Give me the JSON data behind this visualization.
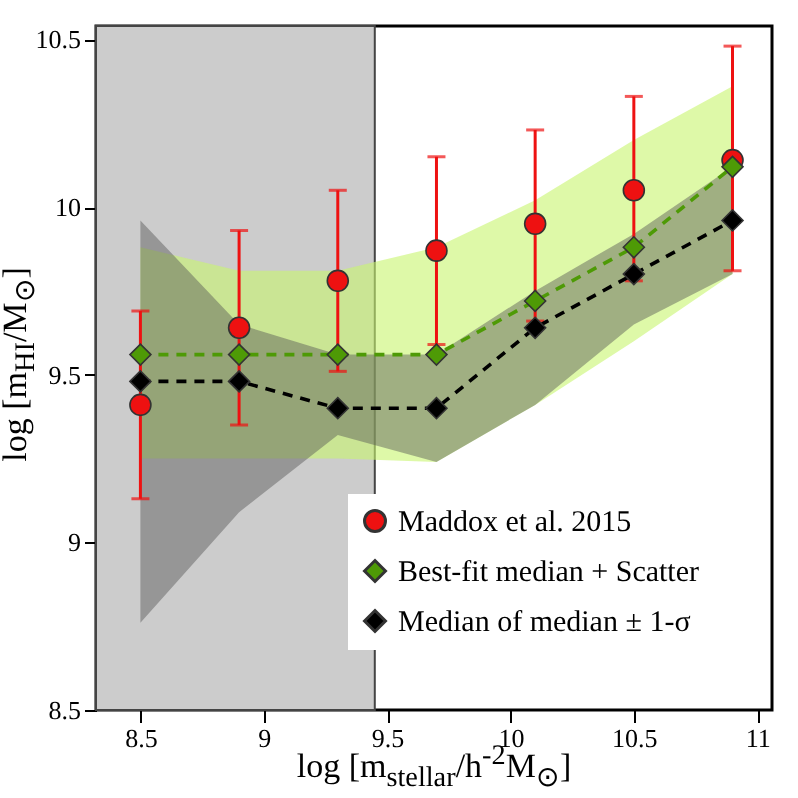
{
  "chart_data": {
    "type": "line",
    "xlabel": "log [m$_{stellar}$/h$^{-2}$M$_{⊙}$]",
    "ylabel": "log [m$_{HI}$/M$_{⊙}$]",
    "x": [
      8.5,
      8.9,
      9.3,
      9.7,
      10.1,
      10.5,
      10.9
    ],
    "series": [
      {
        "name": "Maddox et al. 2015",
        "type": "scatter",
        "marker": "circle",
        "color": "#ee1111",
        "values": [
          9.41,
          9.64,
          9.78,
          9.87,
          9.95,
          10.05,
          10.14
        ],
        "errors": [
          [
            9.13,
            9.69
          ],
          [
            9.35,
            9.93
          ],
          [
            9.51,
            10.05
          ],
          [
            9.59,
            10.15
          ],
          [
            9.66,
            10.23
          ],
          [
            9.78,
            10.33
          ],
          [
            9.81,
            10.48
          ]
        ]
      },
      {
        "name": "Best-fit median + Scatter",
        "marker": "diamond",
        "line_style": "dashed",
        "color": "#4e9a06",
        "values": [
          9.56,
          9.56,
          9.56,
          9.56,
          9.72,
          9.88,
          10.12
        ],
        "lower": [
          9.25,
          9.25,
          9.25,
          9.24,
          9.41,
          9.6,
          9.8
        ],
        "upper": [
          9.88,
          9.81,
          9.81,
          9.88,
          10.02,
          10.2,
          10.36
        ]
      },
      {
        "name": "Median of median ± 1-σ",
        "marker": "diamond",
        "line_style": "dashed",
        "color": "#000000",
        "values": [
          9.48,
          9.48,
          9.4,
          9.4,
          9.64,
          9.8,
          9.96
        ],
        "lower": [
          8.76,
          9.09,
          9.32,
          9.24,
          9.41,
          9.65,
          9.8
        ],
        "upper": [
          9.96,
          9.65,
          9.56,
          9.56,
          9.75,
          9.92,
          10.12
        ]
      }
    ],
    "bands": [
      {
        "axis": "x",
        "from": 8.32,
        "to": 9.45,
        "color": "#cccccc"
      }
    ],
    "xlim": [
      8.32,
      11.06
    ],
    "ylim": [
      8.5,
      10.54
    ],
    "xticks": [
      8.5,
      9,
      9.5,
      10,
      10.5,
      11
    ],
    "yticks": [
      8.5,
      9,
      9.5,
      10,
      10.5
    ],
    "grid": false,
    "legend": "bottom right"
  }
}
